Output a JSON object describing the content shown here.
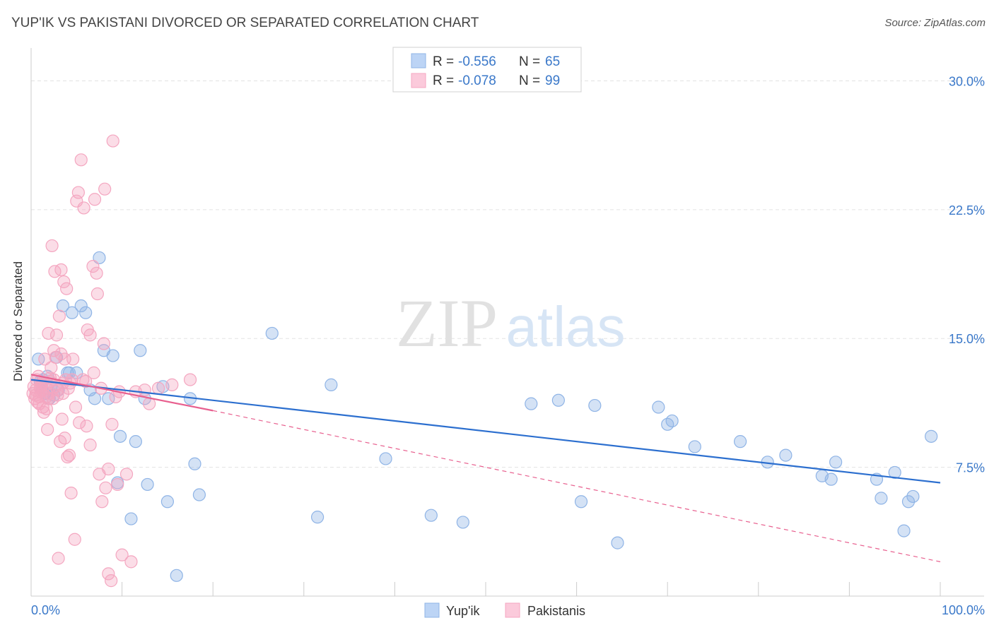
{
  "title": "YUP'IK VS PAKISTANI DIVORCED OR SEPARATED CORRELATION CHART",
  "source": "Source: ZipAtlas.com",
  "watermark": {
    "zip": "ZIP",
    "atlas": "atlas"
  },
  "chart_data": {
    "type": "scatter",
    "title": "YUP'IK VS PAKISTANI DIVORCED OR SEPARATED CORRELATION CHART",
    "xlabel": "",
    "ylabel": "Divorced or Separated",
    "xlim": [
      0,
      100
    ],
    "ylim": [
      0,
      31.5
    ],
    "x_tick_labels": [
      "0.0%",
      "100.0%"
    ],
    "y_ticks": [
      7.5,
      15.0,
      22.5,
      30.0
    ],
    "y_tick_labels": [
      "7.5%",
      "15.0%",
      "22.5%",
      "30.0%"
    ],
    "grid": true,
    "legend_position": "top-center",
    "stats": [
      {
        "r_label": "R =",
        "r_value": "-0.556",
        "n_label": "N =",
        "n_value": "65"
      },
      {
        "r_label": "R =",
        "r_value": "-0.078",
        "n_label": "N =",
        "n_value": "99"
      }
    ],
    "series": [
      {
        "name": "Yup'ik",
        "color": "#8fb4e6",
        "line_color": "#2c6fcf",
        "trend": {
          "x": [
            0,
            100
          ],
          "y": [
            12.6,
            6.6
          ],
          "dashed_to": null
        },
        "x": [
          0.8,
          1.0,
          1.2,
          1.5,
          1.8,
          2.0,
          2.2,
          2.5,
          2.8,
          3.0,
          3.5,
          4.0,
          4.5,
          5.0,
          5.5,
          6.0,
          6.5,
          7.0,
          7.5,
          8.0,
          8.5,
          9.0,
          9.5,
          11.0,
          11.5,
          12.0,
          12.5,
          14.5,
          15.0,
          16.0,
          17.5,
          18.0,
          18.5,
          26.5,
          33.0,
          55.0,
          58.0,
          62.0,
          69.0,
          70.0,
          70.5,
          73.0,
          78.0,
          81.0,
          83.0,
          87.0,
          88.0,
          88.5,
          93.0,
          93.5,
          95.0,
          96.0,
          96.5,
          97.0,
          99.0,
          1.3,
          4.2,
          9.8,
          12.8,
          31.5,
          39.0,
          44.0,
          47.5,
          60.5,
          64.5
        ],
        "y": [
          13.8,
          12.5,
          12.0,
          11.8,
          12.8,
          11.5,
          12.2,
          11.7,
          13.9,
          12.0,
          16.9,
          13.0,
          16.5,
          13.0,
          16.9,
          16.5,
          12.0,
          11.5,
          19.7,
          14.3,
          11.5,
          14.0,
          6.6,
          4.5,
          9.0,
          14.3,
          11.5,
          12.2,
          5.5,
          1.2,
          11.5,
          7.7,
          5.9,
          15.3,
          12.3,
          11.2,
          11.4,
          11.1,
          11.0,
          10.0,
          10.2,
          8.7,
          9.0,
          7.8,
          8.2,
          7.0,
          6.8,
          7.8,
          6.8,
          5.7,
          7.2,
          3.8,
          5.5,
          5.8,
          9.3,
          12.6,
          13.0,
          9.3,
          6.5,
          4.6,
          8.0,
          4.7,
          4.3,
          5.5,
          3.1
        ],
        "x_extra_note": ""
      },
      {
        "name": "Pakistanis",
        "color": "#f4a6c0",
        "line_color": "#e8608f",
        "trend": {
          "x": [
            0,
            20
          ],
          "y": [
            12.9,
            10.8
          ],
          "dashed_to": [
            100,
            2.0
          ]
        },
        "x": [
          0.2,
          0.3,
          0.4,
          0.5,
          0.6,
          0.7,
          0.8,
          0.9,
          1.0,
          1.1,
          1.2,
          1.3,
          1.4,
          1.5,
          1.6,
          1.7,
          1.8,
          1.9,
          2.0,
          2.1,
          2.2,
          2.3,
          2.4,
          2.5,
          2.6,
          2.7,
          2.8,
          2.9,
          3.0,
          3.1,
          3.2,
          3.3,
          3.4,
          3.5,
          3.6,
          3.7,
          3.8,
          3.9,
          4.0,
          4.2,
          4.4,
          4.6,
          4.8,
          5.0,
          5.2,
          5.5,
          5.8,
          6.0,
          6.2,
          6.5,
          6.8,
          7.0,
          7.2,
          7.5,
          7.8,
          8.0,
          8.2,
          8.5,
          8.8,
          9.0,
          9.5,
          10.0,
          10.5,
          11.0,
          11.5,
          12.5,
          13.0,
          14.0,
          15.5,
          17.5,
          0.5,
          0.9,
          1.3,
          1.7,
          2.1,
          2.5,
          2.9,
          3.3,
          3.7,
          4.1,
          4.5,
          4.9,
          5.3,
          5.7,
          6.1,
          6.5,
          6.9,
          7.3,
          7.7,
          8.1,
          8.5,
          8.9,
          9.3,
          9.7,
          1.1,
          1.9,
          2.7,
          3.5,
          4.3
        ],
        "y": [
          11.8,
          12.2,
          11.5,
          12.0,
          12.6,
          11.3,
          12.8,
          11.6,
          12.1,
          11.9,
          12.4,
          11.0,
          10.7,
          13.8,
          12.3,
          11.6,
          9.7,
          15.3,
          11.8,
          12.7,
          13.3,
          20.4,
          11.5,
          14.3,
          18.9,
          13.9,
          15.2,
          12.0,
          2.2,
          16.3,
          9.0,
          19.0,
          10.3,
          12.4,
          18.3,
          9.2,
          12.6,
          17.9,
          8.1,
          8.2,
          6.0,
          13.8,
          3.3,
          23.0,
          23.5,
          25.4,
          22.6,
          12.5,
          15.5,
          15.2,
          19.2,
          23.1,
          18.8,
          7.1,
          5.5,
          14.7,
          6.3,
          1.3,
          0.9,
          26.5,
          6.5,
          2.4,
          7.1,
          2.0,
          11.9,
          12.0,
          11.2,
          12.1,
          12.3,
          12.6,
          11.7,
          11.2,
          12.0,
          10.9,
          12.5,
          12.6,
          11.7,
          14.1,
          13.8,
          12.1,
          12.6,
          11.0,
          10.1,
          12.6,
          9.9,
          8.8,
          13.0,
          17.6,
          12.1,
          23.7,
          7.4,
          10.0,
          11.6,
          11.9,
          12.3,
          11.5,
          12.2,
          11.8,
          12.4
        ],
        "x_extra_note": ""
      }
    ]
  }
}
